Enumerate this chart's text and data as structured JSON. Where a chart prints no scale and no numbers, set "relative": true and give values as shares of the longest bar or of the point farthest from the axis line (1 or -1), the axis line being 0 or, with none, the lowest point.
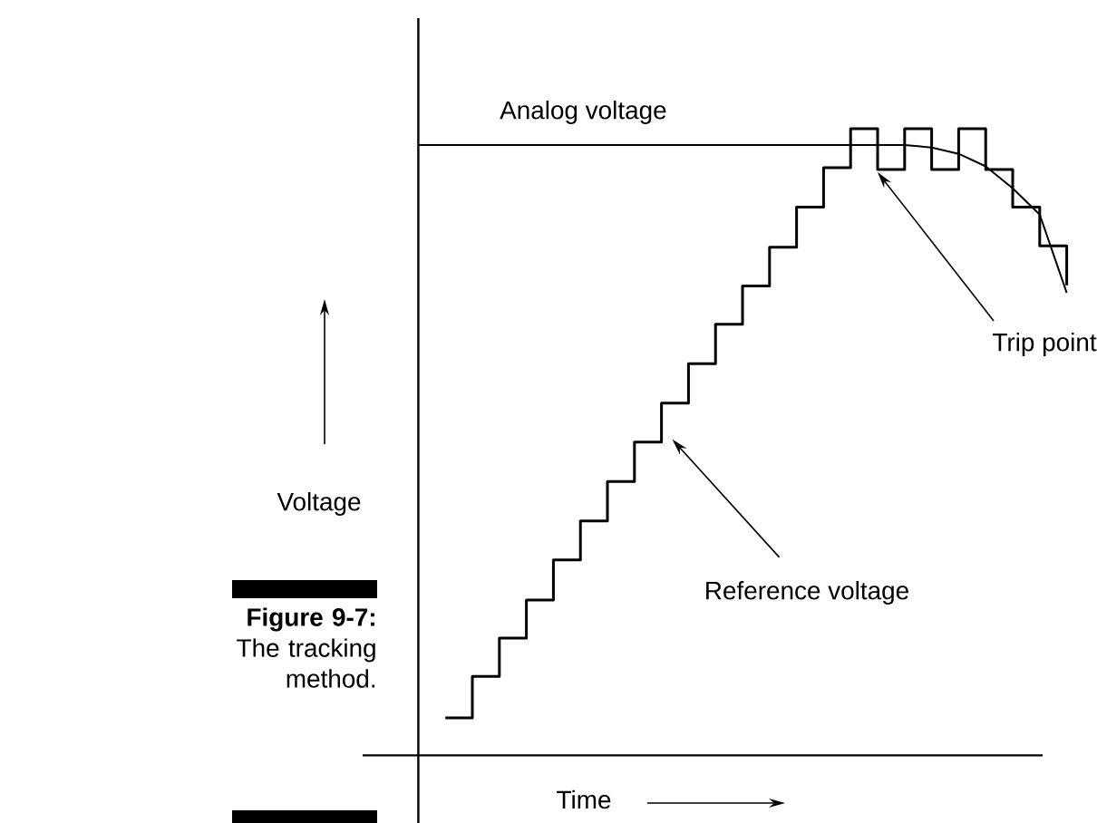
{
  "chart_data": {
    "type": "line",
    "title": "Figure 9-7:",
    "subtitle": "The tracking method.",
    "xlabel": "Time",
    "ylabel": "Voltage",
    "relative": true,
    "categories": [
      null,
      null,
      null,
      null,
      null,
      null,
      null,
      null,
      null,
      null,
      null,
      null,
      null,
      null,
      null,
      null,
      null,
      null,
      null,
      null,
      null,
      null,
      null,
      null,
      null
    ],
    "series": [
      {
        "type": "step",
        "color": "#000000",
        "values": [
          null,
          0.06,
          0.126,
          0.187,
          0.248,
          0.312,
          0.374,
          0.437,
          0.5,
          0.562,
          0.625,
          0.688,
          0.749,
          0.811,
          0.875,
          0.938,
          1,
          0.935,
          1,
          0.935,
          1,
          0.935,
          0.875,
          0.813,
          0.75
        ]
      },
      {
        "name": "Analog voltage",
        "color": "#000000",
        "values": [
          0.974,
          0.974,
          0.974,
          0.974,
          0.974,
          0.974,
          0.974,
          0.974,
          0.974,
          0.974,
          0.974,
          0.974,
          0.974,
          0.974,
          0.974,
          0.974,
          0.974,
          0.974,
          0.974,
          0.97,
          0.96,
          0.94,
          0.905,
          0.863,
          0.738
        ]
      }
    ],
    "annotations": [
      "Trip point",
      "Reference voltage"
    ]
  }
}
